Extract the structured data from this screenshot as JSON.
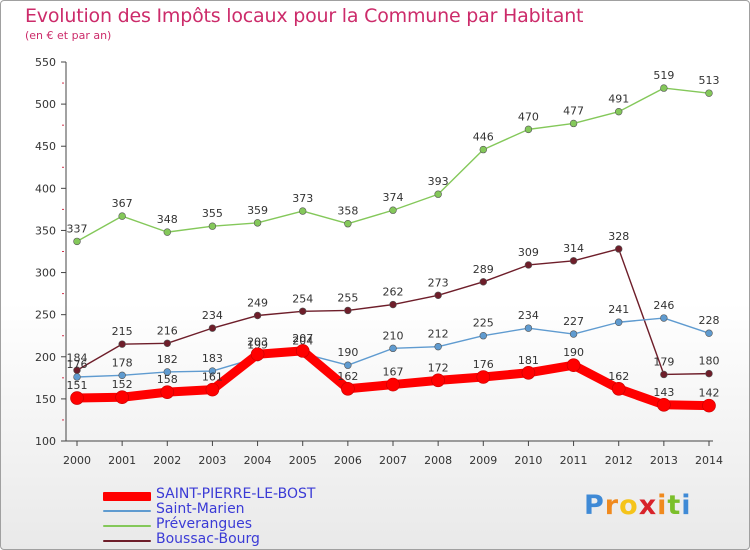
{
  "chart_data": {
    "type": "line",
    "title": "Evolution des Impôts locaux pour la Commune par Habitant",
    "subtitle": "(en € et par an)",
    "x": [
      2000,
      2001,
      2002,
      2003,
      2004,
      2005,
      2006,
      2007,
      2008,
      2009,
      2010,
      2011,
      2012,
      2013,
      2014
    ],
    "ylim": [
      100,
      550
    ],
    "yticks": [
      100,
      150,
      200,
      250,
      300,
      350,
      400,
      450,
      500,
      550
    ],
    "grid": false,
    "legend_position": "bottom-left",
    "series": [
      {
        "name": "Préverangues",
        "color": "#84c85a",
        "values": [
          337,
          367,
          348,
          355,
          359,
          373,
          358,
          374,
          393,
          446,
          470,
          477,
          491,
          519,
          513
        ],
        "labels": [
          "337",
          "367",
          "348",
          "355",
          "359",
          "373",
          "358",
          "374",
          "393",
          "446",
          "470",
          "477",
          "491",
          "519",
          "513"
        ]
      },
      {
        "name": "Boussac-Bourg",
        "color": "#6e1e2a",
        "values": [
          184,
          215,
          216,
          234,
          249,
          254,
          255,
          262,
          273,
          289,
          309,
          314,
          328,
          179,
          180
        ],
        "labels": [
          "184",
          "215",
          "216",
          "234",
          "249",
          "254",
          "255",
          "262",
          "273",
          "289",
          "309",
          "314",
          "328",
          "179",
          "180"
        ]
      },
      {
        "name": "Saint-Marien",
        "color": "#5f9bd0",
        "values": [
          176,
          178,
          182,
          183,
          199,
          204,
          190,
          210,
          212,
          225,
          234,
          227,
          241,
          246,
          228
        ],
        "labels": [
          "176",
          "178",
          "182",
          "183",
          "199",
          "204",
          "190",
          "210",
          "212",
          "225",
          "234",
          "227",
          "241",
          "246",
          "228"
        ]
      },
      {
        "name": "SAINT-PIERRE-LE-BOST",
        "color": "#ff0000",
        "values": [
          151,
          152,
          158,
          161,
          203,
          207,
          162,
          167,
          172,
          176,
          181,
          190,
          162,
          143,
          142
        ],
        "labels": [
          "151",
          "152",
          "158",
          "161",
          "203",
          "207",
          "162",
          "167",
          "172",
          "176",
          "181",
          "190",
          "162",
          "143",
          "142"
        ]
      }
    ]
  },
  "legend": [
    {
      "label": "SAINT-PIERRE-LE-BOST",
      "color": "#ff0000",
      "style": "thick"
    },
    {
      "label": "Saint-Marien",
      "color": "#5f9bd0",
      "style": "thin"
    },
    {
      "label": "Préverangues",
      "color": "#84c85a",
      "style": "thin"
    },
    {
      "label": "Boussac-Bourg",
      "color": "#6e1e2a",
      "style": "thin"
    }
  ],
  "brand": {
    "letters": [
      "P",
      "r",
      "o",
      "x",
      "i",
      "t",
      "i"
    ],
    "colors": [
      "#3f8ad6",
      "#f08a1e",
      "#f5c41a",
      "#d8232a",
      "#f08a1e",
      "#7bbf2a",
      "#3f8ad6"
    ]
  }
}
